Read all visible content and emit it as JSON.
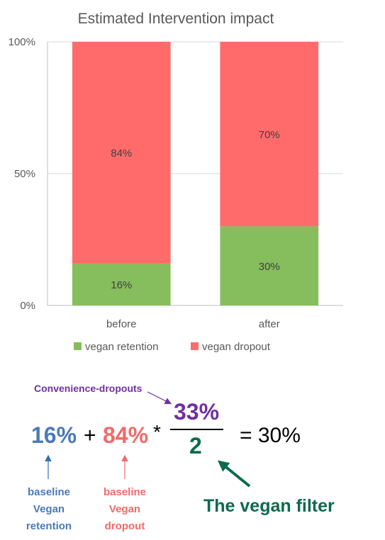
{
  "chart_data": {
    "type": "bar",
    "stacked": true,
    "title": "Estimated Intervention impact",
    "categories": [
      "before",
      "after"
    ],
    "series": [
      {
        "name": "vegan retention",
        "values": [
          16,
          30
        ],
        "labels": [
          "16%",
          "30%"
        ],
        "color": "#86bd5d"
      },
      {
        "name": "vegan dropout",
        "values": [
          84,
          70
        ],
        "labels": [
          "84%",
          "70%"
        ],
        "color": "#ff6b6b"
      }
    ],
    "ylim": [
      0,
      100
    ],
    "yticks": [
      0,
      50,
      100
    ],
    "ytick_labels": [
      "0%",
      "50%",
      "100%"
    ],
    "grid": true,
    "legend": "bottom"
  },
  "equation": {
    "annotation_top": "Convenience-dropouts",
    "term_retention": "16%",
    "plus": "+",
    "term_dropout": "84%",
    "multiply": "*",
    "numerator": "33%",
    "denominator": "2",
    "equals": "= 30%",
    "label_retention_lines": [
      "baseline",
      "Vegan",
      "retention"
    ],
    "label_dropout_lines": [
      "baseline",
      "Vegan",
      "dropout"
    ],
    "filter_label": "The vegan filter"
  },
  "colors": {
    "retention_blue": "#4a7ab8",
    "dropout_red": "#f26a6a",
    "purple": "#7030a0",
    "green_dark": "#0b6b4a",
    "axis_gray": "#595959"
  }
}
